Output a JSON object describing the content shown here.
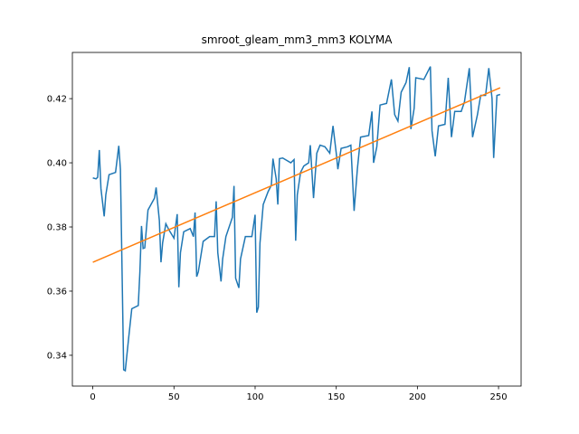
{
  "chart_data": {
    "type": "line",
    "title": "smroot_gleam_mm3_mm3 KOLYMA",
    "xlim": [
      -12.6,
      263.9
    ],
    "ylim": [
      0.3304,
      0.4344
    ],
    "xticks": [
      0,
      50,
      100,
      150,
      200,
      250
    ],
    "yticks": [
      0.34,
      0.36,
      0.38,
      0.4,
      0.42
    ],
    "series": [
      {
        "color": "#1f77b4",
        "x": [
          0,
          2,
          3,
          4,
          5,
          7,
          8,
          10,
          14,
          16,
          17,
          19,
          20,
          22,
          24,
          28,
          29,
          30,
          31,
          32,
          34,
          38,
          39,
          41,
          42,
          43,
          45,
          47,
          50,
          52,
          53,
          54,
          56,
          60,
          62,
          63,
          64,
          65,
          68,
          72,
          75,
          76,
          77,
          79,
          80,
          82,
          86,
          87,
          88,
          90,
          91,
          94,
          98,
          100,
          101,
          102,
          103,
          105,
          108,
          110,
          111,
          113,
          114,
          115,
          117,
          122,
          124,
          125,
          126,
          128,
          130,
          133,
          134,
          136,
          138,
          140,
          143,
          146,
          148,
          150,
          151,
          153,
          157,
          159,
          161,
          163,
          165,
          170,
          172,
          173,
          175,
          177,
          181,
          184,
          186,
          188,
          190,
          193,
          195,
          196,
          198,
          199,
          204,
          208,
          209,
          211,
          213,
          217,
          219,
          221,
          223,
          227,
          229,
          232,
          234,
          237,
          239,
          242,
          244,
          246,
          247,
          249,
          251
        ],
        "values": [
          0.3953,
          0.395,
          0.3955,
          0.404,
          0.392,
          0.3833,
          0.39,
          0.3963,
          0.397,
          0.4053,
          0.398,
          0.3355,
          0.3352,
          0.345,
          0.3545,
          0.3555,
          0.366,
          0.3803,
          0.3733,
          0.3735,
          0.3853,
          0.389,
          0.3923,
          0.382,
          0.369,
          0.375,
          0.381,
          0.379,
          0.3765,
          0.384,
          0.3612,
          0.372,
          0.3785,
          0.3795,
          0.377,
          0.3845,
          0.3645,
          0.366,
          0.3755,
          0.377,
          0.377,
          0.388,
          0.372,
          0.363,
          0.37,
          0.377,
          0.383,
          0.3928,
          0.364,
          0.361,
          0.37,
          0.377,
          0.377,
          0.3838,
          0.3533,
          0.355,
          0.375,
          0.387,
          0.391,
          0.393,
          0.4013,
          0.395,
          0.387,
          0.4013,
          0.4015,
          0.4,
          0.401,
          0.3757,
          0.39,
          0.397,
          0.399,
          0.4,
          0.4055,
          0.389,
          0.403,
          0.4055,
          0.405,
          0.403,
          0.4115,
          0.403,
          0.398,
          0.4045,
          0.405,
          0.4055,
          0.385,
          0.398,
          0.408,
          0.4085,
          0.416,
          0.4,
          0.405,
          0.418,
          0.4185,
          0.426,
          0.415,
          0.413,
          0.422,
          0.425,
          0.4298,
          0.4105,
          0.417,
          0.4265,
          0.426,
          0.43,
          0.41,
          0.402,
          0.4115,
          0.412,
          0.4265,
          0.408,
          0.416,
          0.416,
          0.419,
          0.4295,
          0.408,
          0.415,
          0.421,
          0.421,
          0.4295,
          0.42,
          0.4015,
          0.421,
          0.4213
        ]
      },
      {
        "color": "#ff7f0e",
        "x": [
          0,
          251
        ],
        "values": [
          0.369,
          0.4234
        ]
      }
    ]
  }
}
